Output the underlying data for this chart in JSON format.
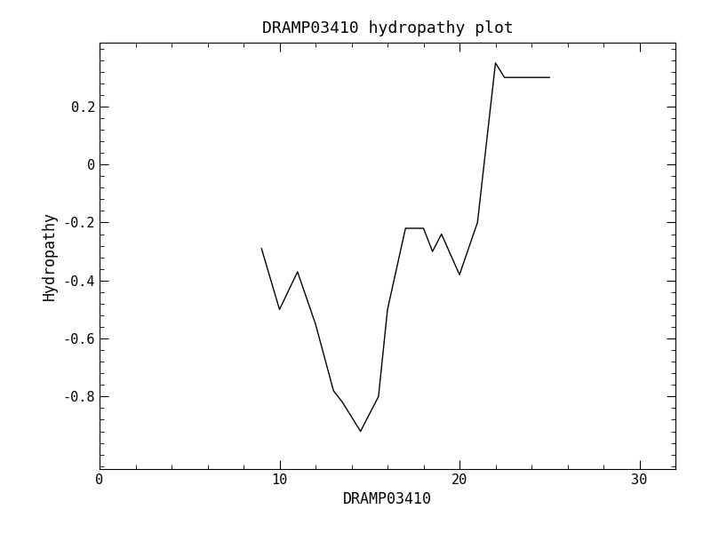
{
  "title": "DRAMP03410 hydropathy plot",
  "xlabel": "DRAMP03410",
  "ylabel": "Hydropathy",
  "xlim": [
    0,
    32
  ],
  "ylim": [
    -1.05,
    0.42
  ],
  "xticks": [
    0,
    10,
    20,
    30
  ],
  "yticks": [
    -0.8,
    -0.6,
    -0.4,
    -0.2,
    0.0,
    0.2
  ],
  "background_color": "#ffffff",
  "line_color": "#000000",
  "line_width": 1.0,
  "x": [
    9.0,
    10.0,
    11.0,
    12.0,
    13.0,
    13.5,
    14.5,
    15.5,
    16.0,
    17.0,
    18.0,
    18.5,
    19.0,
    20.0,
    21.0,
    22.0,
    22.5,
    25.0
  ],
  "y": [
    -0.29,
    -0.5,
    -0.37,
    -0.55,
    -0.78,
    -0.82,
    -0.92,
    -0.8,
    -0.5,
    -0.22,
    -0.22,
    -0.3,
    -0.24,
    -0.38,
    -0.2,
    0.35,
    0.3,
    0.3
  ],
  "title_fontsize": 13,
  "label_fontsize": 12,
  "tick_fontsize": 11,
  "x_minor_ticks": 5,
  "y_minor_ticks": 5
}
